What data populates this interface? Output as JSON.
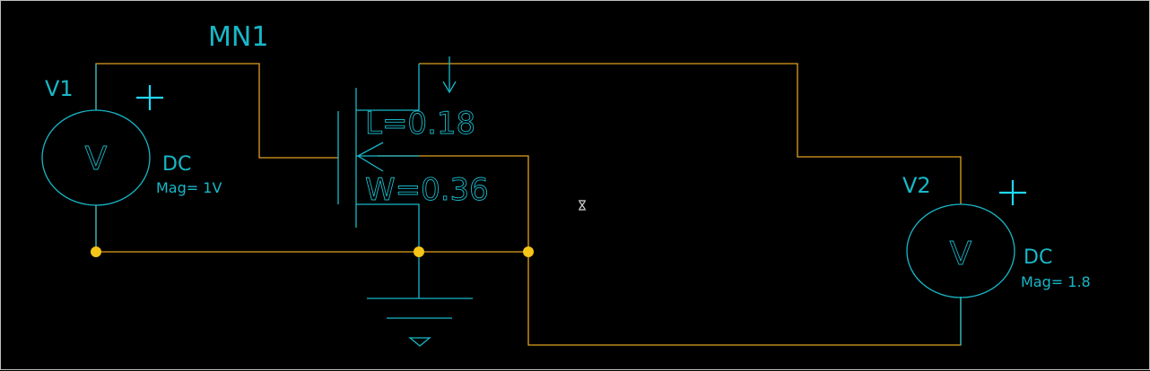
{
  "transistor": {
    "name": "MN1",
    "length_label": "L=0.18",
    "width_label": "W=0.36"
  },
  "source_v1": {
    "name": "V1",
    "symbol": "V",
    "type": "DC",
    "magnitude": "Mag= 1V"
  },
  "source_v2": {
    "name": "V2",
    "symbol": "V",
    "type": "DC",
    "magnitude": "Mag= 1.8"
  },
  "colors": {
    "background": "#000000",
    "wire": "#e0a020",
    "component": "#18b8c8",
    "junction": "#f5c518"
  }
}
